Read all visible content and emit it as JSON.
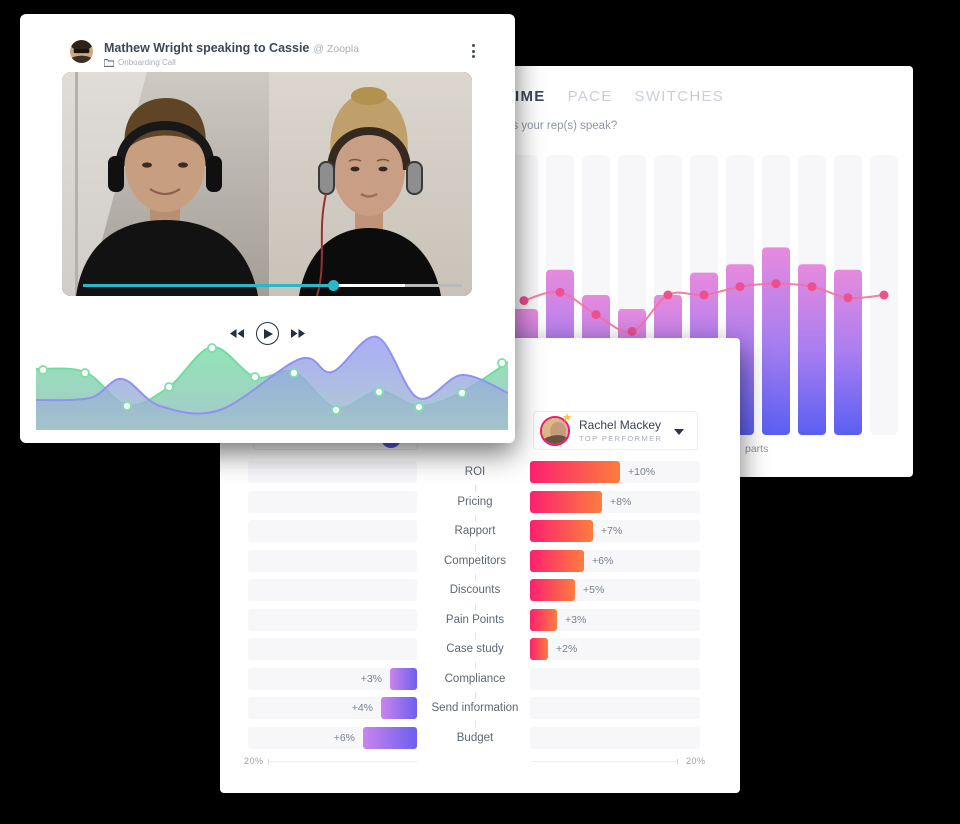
{
  "page": {
    "background": "#000000"
  },
  "call_card": {
    "title": "Mathew Wright speaking to Cassie",
    "company": "@ Zoopla",
    "category": "Onboarding Call",
    "player": {
      "played_pct": 66,
      "buffered_pct": 85,
      "progress_color": "#2ab7c9"
    }
  },
  "talk_card": {
    "tabs": [
      {
        "label": "IME",
        "active": true
      },
      {
        "label": "PACE",
        "active": false
      },
      {
        "label": "SWITCHES",
        "active": false
      }
    ],
    "subtitle_fragment": "es your rep(s) speak?",
    "x_axis_fragment": "parts"
  },
  "comparison_card": {
    "selected_rep": {
      "name": "Rachel Mackey",
      "badge": "TOP PERFORMER"
    },
    "rows": [
      {
        "label": "ROI",
        "side": "right",
        "value_label": "+10%",
        "pct": 10
      },
      {
        "label": "Pricing",
        "side": "right",
        "value_label": "+8%",
        "pct": 8
      },
      {
        "label": "Rapport",
        "side": "right",
        "value_label": "+7%",
        "pct": 7
      },
      {
        "label": "Competitors",
        "side": "right",
        "value_label": "+6%",
        "pct": 6
      },
      {
        "label": "Discounts",
        "side": "right",
        "value_label": "+5%",
        "pct": 5
      },
      {
        "label": "Pain Points",
        "side": "right",
        "value_label": "+3%",
        "pct": 3
      },
      {
        "label": "Case study",
        "side": "right",
        "value_label": "+2%",
        "pct": 2
      },
      {
        "label": "Compliance",
        "side": "left",
        "value_label": "+3%",
        "pct": 3
      },
      {
        "label": "Send information",
        "side": "left",
        "value_label": "+4%",
        "pct": 4
      },
      {
        "label": "Budget",
        "side": "left",
        "value_label": "+6%",
        "pct": 6
      }
    ],
    "axis": {
      "left_label": "20%",
      "right_label": "20%"
    },
    "colors": {
      "right_bar_gradient": [
        "#fd2070",
        "#fc7d3e"
      ],
      "left_bar_gradient": [
        "#cb85ec",
        "#6c5fee"
      ]
    }
  },
  "chart_data": [
    {
      "type": "bar",
      "name": "talk-time-bars-with-line",
      "x": [
        1,
        2,
        3,
        4,
        5,
        6,
        7,
        8,
        9,
        10,
        11
      ],
      "bar_values_pct": [
        45,
        59,
        50,
        45,
        50,
        58,
        61,
        67,
        61,
        59,
        0
      ],
      "line_values_pct": [
        48,
        51,
        43,
        37,
        50,
        50,
        53,
        54,
        53,
        49,
        50
      ],
      "ylim": [
        0,
        100
      ],
      "bar_gradient": [
        "#e78ade",
        "#a97ef0",
        "#5a5ff2"
      ],
      "line_color": "#f4719e",
      "dot_color": "#ee4f8d",
      "x_axis_fragment": "parts"
    },
    {
      "type": "bar",
      "name": "topic-lift-comparison",
      "unit": "%",
      "axis_max": 20,
      "series": [
        {
          "name": "Rachel Mackey",
          "side": "right",
          "color_gradient": [
            "#fd2070",
            "#fc7d3e"
          ],
          "data": [
            [
              "ROI",
              10
            ],
            [
              "Pricing",
              8
            ],
            [
              "Rapport",
              7
            ],
            [
              "Competitors",
              6
            ],
            [
              "Discounts",
              5
            ],
            [
              "Pain Points",
              3
            ],
            [
              "Case study",
              2
            ]
          ]
        },
        {
          "name": "left-purple-series",
          "side": "left",
          "color_gradient": [
            "#cb85ec",
            "#6c5fee"
          ],
          "data": [
            [
              "Compliance",
              3
            ],
            [
              "Send information",
              4
            ],
            [
              "Budget",
              6
            ]
          ]
        }
      ]
    },
    {
      "type": "area",
      "name": "call-audio-wave",
      "series": [
        {
          "name": "green-wave",
          "color": "#6fdda2",
          "points": [
            [
              0,
              35
            ],
            [
              49,
              38
            ],
            [
              91,
              71
            ],
            [
              133,
              53
            ],
            [
              176,
              13
            ],
            [
              219,
              43
            ],
            [
              258,
              38
            ],
            [
              300,
              74
            ],
            [
              343,
              57
            ],
            [
              383,
              72
            ],
            [
              426,
              58
            ],
            [
              472,
              28
            ]
          ]
        },
        {
          "name": "purple-wave",
          "color": "#8f92f1",
          "points": [
            [
              0,
              66
            ],
            [
              54,
              64
            ],
            [
              86,
              45
            ],
            [
              124,
              72
            ],
            [
              184,
              76
            ],
            [
              264,
              25
            ],
            [
              296,
              38
            ],
            [
              341,
              3
            ],
            [
              382,
              64
            ],
            [
              426,
              41
            ],
            [
              472,
              59
            ]
          ]
        }
      ],
      "markers": [
        [
          7,
          36
        ],
        [
          49,
          39
        ],
        [
          91,
          72
        ],
        [
          133,
          53
        ],
        [
          176,
          14
        ],
        [
          219,
          43
        ],
        [
          258,
          39
        ],
        [
          300,
          76
        ],
        [
          343,
          58
        ],
        [
          383,
          73
        ],
        [
          426,
          59
        ],
        [
          466,
          29
        ]
      ]
    }
  ]
}
